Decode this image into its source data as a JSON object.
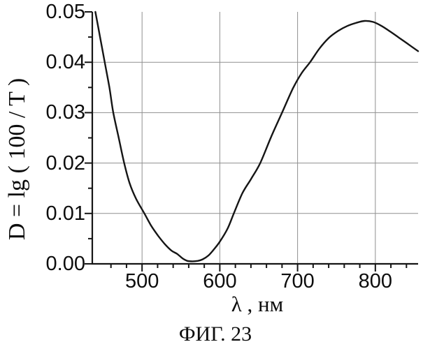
{
  "chart_data": {
    "type": "line",
    "title": "",
    "xlabel": "λ , нм",
    "ylabel": "D = lg ( 100 / T )",
    "caption": "ФИГ. 23",
    "xlim": [
      436,
      855
    ],
    "ylim": [
      0,
      0.05
    ],
    "grid": true,
    "legend_position": "none",
    "x_major_ticks": [
      500,
      600,
      700,
      800
    ],
    "x_tick_labels": [
      "500",
      "600",
      "700",
      "800"
    ],
    "x_minor_ticks": [
      460,
      480,
      520,
      540,
      560,
      580,
      620,
      640,
      660,
      680,
      720,
      740,
      760,
      780,
      820,
      840
    ],
    "y_major_ticks": [
      0,
      0.01,
      0.02,
      0.03,
      0.04,
      0.05
    ],
    "y_tick_labels": [
      "0.00",
      "0.01",
      "0.02",
      "0.03",
      "0.04",
      "0.05"
    ],
    "y_minor_ticks": [
      0.005,
      0.015,
      0.025,
      0.035,
      0.045
    ],
    "series": [
      {
        "name": "optical-density-spectrum",
        "x": [
          440,
          446,
          452,
          458,
          463,
          470,
          477,
          484,
          492,
          503,
          512,
          521,
          530,
          538,
          545,
          552,
          558,
          565,
          572,
          578,
          585,
          592,
          600,
          610,
          618,
          629,
          640,
          652,
          666,
          680,
          694,
          705,
          716,
          728,
          740,
          752,
          764,
          775,
          786,
          797,
          808,
          820,
          832,
          844,
          855
        ],
        "y": [
          0.05,
          0.045,
          0.04,
          0.035,
          0.03,
          0.025,
          0.02,
          0.016,
          0.013,
          0.01,
          0.0075,
          0.0055,
          0.0038,
          0.0026,
          0.002,
          0.0011,
          0.0006,
          0.0005,
          0.0006,
          0.0009,
          0.0016,
          0.0028,
          0.0044,
          0.007,
          0.01,
          0.014,
          0.0168,
          0.02,
          0.0252,
          0.03,
          0.0348,
          0.0378,
          0.04,
          0.0427,
          0.0448,
          0.0462,
          0.0472,
          0.0478,
          0.0482,
          0.048,
          0.0472,
          0.046,
          0.0447,
          0.0434,
          0.0422
        ]
      }
    ],
    "colors": {
      "curve": "#151515",
      "axis": "#151515",
      "grid": "#8f8f8f",
      "text": "#0d0d0d",
      "background": "#ffffff"
    }
  }
}
